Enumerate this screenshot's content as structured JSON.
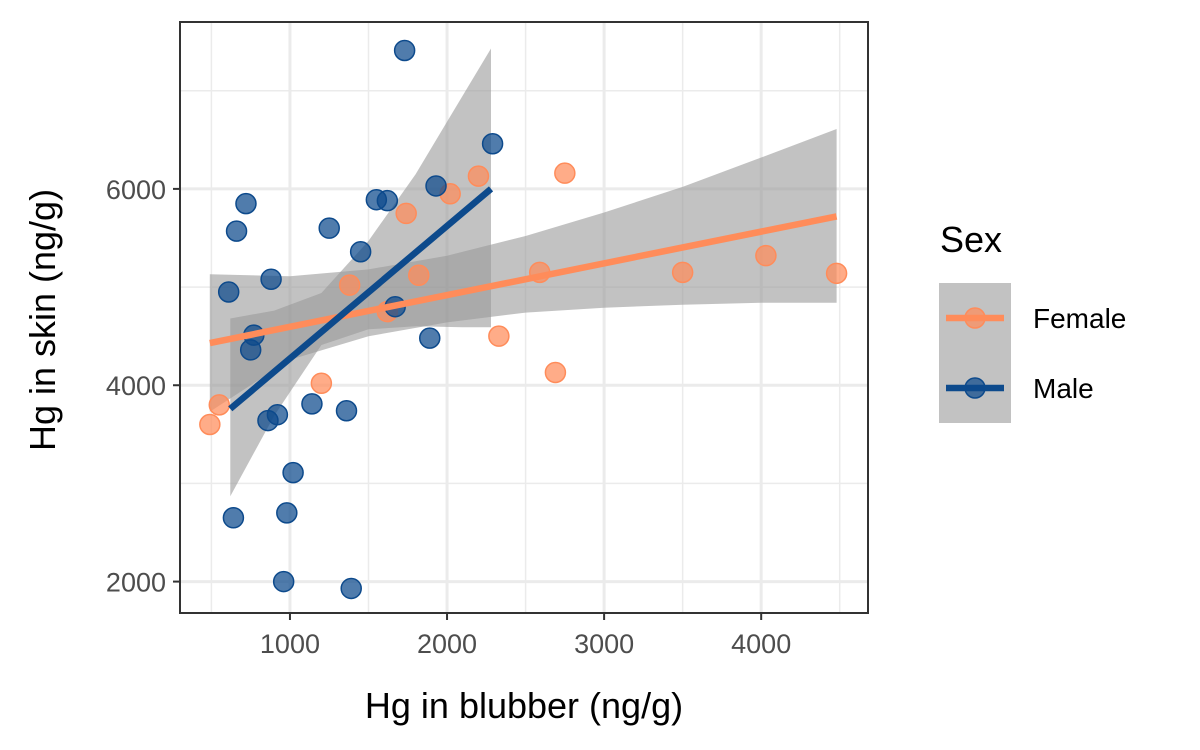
{
  "chart_data": {
    "type": "scatter",
    "xlabel": "Hg in blubber (ng/g)",
    "ylabel": "Hg in skin (ng/g)",
    "xlim": [
      300,
      4680
    ],
    "ylim": [
      1680,
      7700
    ],
    "x_ticks": [
      1000,
      2000,
      3000,
      4000
    ],
    "x_tick_labels": [
      "1000",
      "2000",
      "3000",
      "4000"
    ],
    "y_ticks": [
      2000,
      4000,
      6000
    ],
    "y_tick_labels": [
      "2000",
      "4000",
      "6000"
    ],
    "grid": true,
    "legend": {
      "title": "Sex",
      "position": "right",
      "entries": [
        "Female",
        "Male"
      ]
    },
    "colors": {
      "Female": "#ff8c5a",
      "Male": "#0d4a8c",
      "ribbon": "#999999",
      "grid": "#ebebeb",
      "panel_border": "#333333"
    },
    "series": [
      {
        "name": "Female",
        "points": [
          [
            490,
            3600
          ],
          [
            550,
            3800
          ],
          [
            1200,
            4020
          ],
          [
            1380,
            5020
          ],
          [
            1620,
            4750
          ],
          [
            1740,
            5750
          ],
          [
            1820,
            5120
          ],
          [
            2020,
            5950
          ],
          [
            2200,
            6130
          ],
          [
            2330,
            4500
          ],
          [
            2590,
            5150
          ],
          [
            2690,
            4130
          ],
          [
            2750,
            6160
          ],
          [
            3500,
            5150
          ],
          [
            4030,
            5320
          ],
          [
            4480,
            5140
          ]
        ],
        "fit_line": [
          [
            490,
            4430
          ],
          [
            4480,
            5720
          ]
        ],
        "confidence_band": {
          "x": [
            490,
            1000,
            1500,
            2000,
            2500,
            3000,
            3500,
            4000,
            4480
          ],
          "lower": [
            3730,
            4260,
            4500,
            4640,
            4740,
            4790,
            4820,
            4840,
            4840
          ],
          "upper": [
            5130,
            5110,
            5180,
            5320,
            5520,
            5760,
            6020,
            6320,
            6610
          ]
        }
      },
      {
        "name": "Male",
        "points": [
          [
            610,
            4950
          ],
          [
            640,
            2650
          ],
          [
            660,
            5570
          ],
          [
            720,
            5850
          ],
          [
            750,
            4360
          ],
          [
            770,
            4510
          ],
          [
            860,
            3640
          ],
          [
            880,
            5080
          ],
          [
            920,
            3700
          ],
          [
            960,
            2000
          ],
          [
            980,
            2700
          ],
          [
            1020,
            3110
          ],
          [
            1140,
            3810
          ],
          [
            1250,
            5600
          ],
          [
            1360,
            3740
          ],
          [
            1390,
            1930
          ],
          [
            1450,
            5360
          ],
          [
            1550,
            5890
          ],
          [
            1620,
            5880
          ],
          [
            1670,
            4800
          ],
          [
            1730,
            7410
          ],
          [
            1890,
            4480
          ],
          [
            1930,
            6030
          ],
          [
            2290,
            6460
          ]
        ],
        "fit_line": [
          [
            620,
            3760
          ],
          [
            2280,
            6000
          ]
        ],
        "confidence_band": {
          "x": [
            620,
            900,
            1200,
            1500,
            1800,
            2100,
            2280
          ],
          "lower": [
            2870,
            3690,
            4410,
            4570,
            4600,
            4590,
            4590
          ],
          "upper": [
            4680,
            4760,
            4940,
            5470,
            6150,
            6950,
            7430
          ]
        }
      }
    ]
  }
}
